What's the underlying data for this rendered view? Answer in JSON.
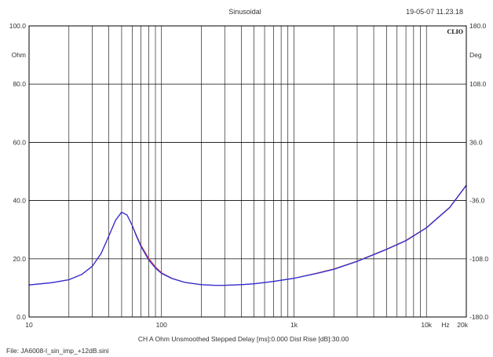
{
  "header": {
    "title": "Sinusoidal",
    "timestamp": "19-05-07 11.23.18",
    "brand": "CLIO"
  },
  "footer": {
    "settings": "CH A  Ohm  Unsmoothed  Stepped   Delay [ms]:0.000   Dist Rise [dB]:30.00",
    "file": "File: JA6008-l_sin_imp_+12dB.sini"
  },
  "colors": {
    "background": "#ffffff",
    "grid": "#000000",
    "series_main": "#2f2fd8",
    "series_overlay": "#d23a3a"
  },
  "chart_data": {
    "type": "line",
    "title": "Sinusoidal",
    "x_scale": "log",
    "xlim": [
      10,
      20000
    ],
    "x_ticks": [
      {
        "value": 10,
        "label": "10"
      },
      {
        "value": 100,
        "label": "100"
      },
      {
        "value": 1000,
        "label": "1k"
      },
      {
        "value": 10000,
        "label": "10k"
      },
      {
        "value": 20000,
        "label": "20k"
      }
    ],
    "x_unit": "Hz",
    "ylim": [
      0,
      100
    ],
    "y_ticks": [
      {
        "value": 100,
        "label": "100.0"
      },
      {
        "value": 80,
        "label": "80.0"
      },
      {
        "value": 60,
        "label": "60.0"
      },
      {
        "value": 40,
        "label": "40.0"
      },
      {
        "value": 20,
        "label": "20.0"
      },
      {
        "value": 0,
        "label": "0.0"
      }
    ],
    "y_unit": "Ohm",
    "y2lim": [
      -180,
      180
    ],
    "y2_ticks": [
      {
        "value": 180,
        "label": "180.0"
      },
      {
        "value": 108,
        "label": "108.0"
      },
      {
        "value": 36,
        "label": "36.0"
      },
      {
        "value": -36,
        "label": "-36.0"
      },
      {
        "value": -108,
        "label": "-108.0"
      },
      {
        "value": -180,
        "label": "-180.0"
      }
    ],
    "y2_unit": "Deg",
    "grid": true,
    "series": [
      {
        "color": "#2f2fd8",
        "x": [
          10,
          15,
          20,
          25,
          30,
          35,
          40,
          45,
          50,
          55,
          60,
          65,
          70,
          80,
          90,
          100,
          120,
          150,
          200,
          250,
          300,
          400,
          500,
          700,
          1000,
          1500,
          2000,
          3000,
          5000,
          7000,
          10000,
          15000,
          20000
        ],
        "y": [
          11.0,
          11.8,
          12.8,
          14.6,
          17.4,
          21.8,
          27.8,
          33.2,
          36.0,
          35.0,
          31.5,
          27.5,
          24.2,
          19.6,
          16.8,
          15.0,
          13.2,
          11.9,
          11.1,
          10.9,
          10.9,
          11.1,
          11.4,
          12.2,
          13.3,
          15.0,
          16.4,
          19.1,
          23.2,
          26.2,
          30.6,
          37.6,
          45.2
        ]
      },
      {
        "color": "#d23a3a",
        "x": [
          10,
          15,
          20,
          25,
          30,
          35,
          40,
          45,
          50,
          55,
          60,
          65,
          70,
          80,
          90,
          100,
          120,
          150,
          200,
          250,
          300,
          400,
          500,
          700,
          1000,
          1500,
          2000,
          3000,
          5000,
          7000,
          10000,
          15000,
          20000
        ],
        "y": [
          11.0,
          11.8,
          12.8,
          14.6,
          17.4,
          21.8,
          27.8,
          33.2,
          36.0,
          35.0,
          31.5,
          27.8,
          24.6,
          20.2,
          17.2,
          15.2,
          13.3,
          11.9,
          11.1,
          10.9,
          10.9,
          11.1,
          11.4,
          12.2,
          13.3,
          15.1,
          16.5,
          19.2,
          23.3,
          26.3,
          30.7,
          37.7,
          45.3
        ]
      }
    ]
  }
}
